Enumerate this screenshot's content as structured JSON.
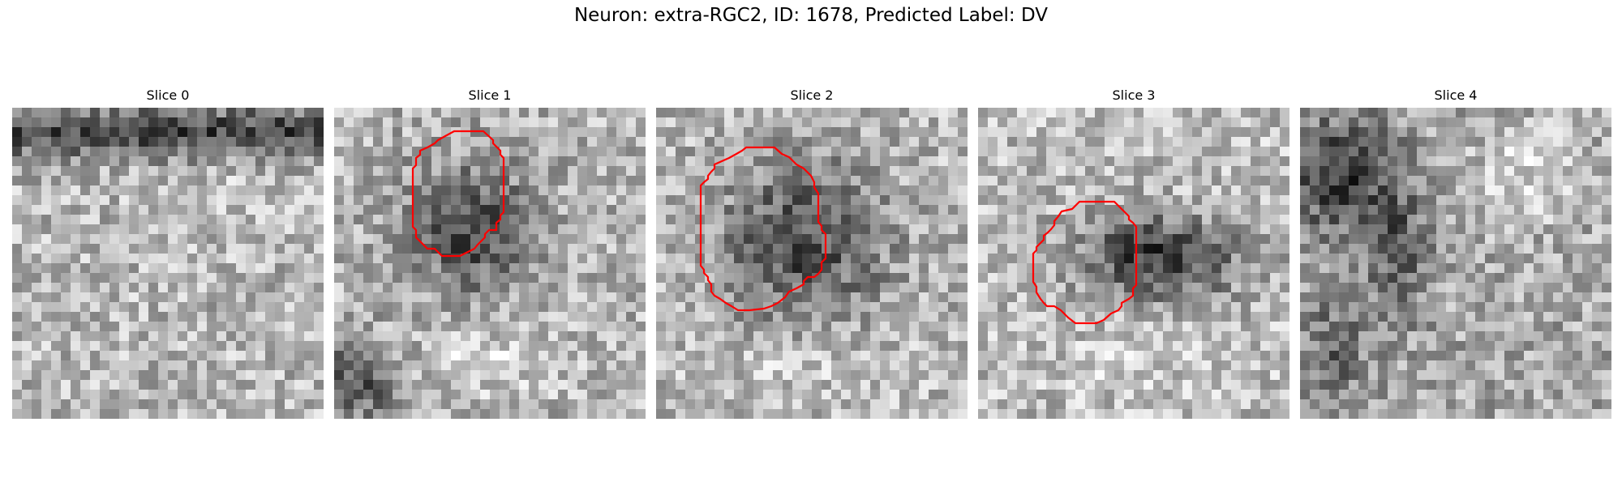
{
  "figure": {
    "title": "Neuron: extra-RGC2, ID: 1678, Predicted Label: DV"
  },
  "panels": [
    {
      "title": "Slice 0",
      "has_contour": false
    },
    {
      "title": "Slice 1",
      "has_contour": true
    },
    {
      "title": "Slice 2",
      "has_contour": true
    },
    {
      "title": "Slice 3",
      "has_contour": true
    },
    {
      "title": "Slice 4",
      "has_contour": false
    }
  ],
  "colors": {
    "contour": "#ff0000",
    "background": "#ffffff"
  }
}
